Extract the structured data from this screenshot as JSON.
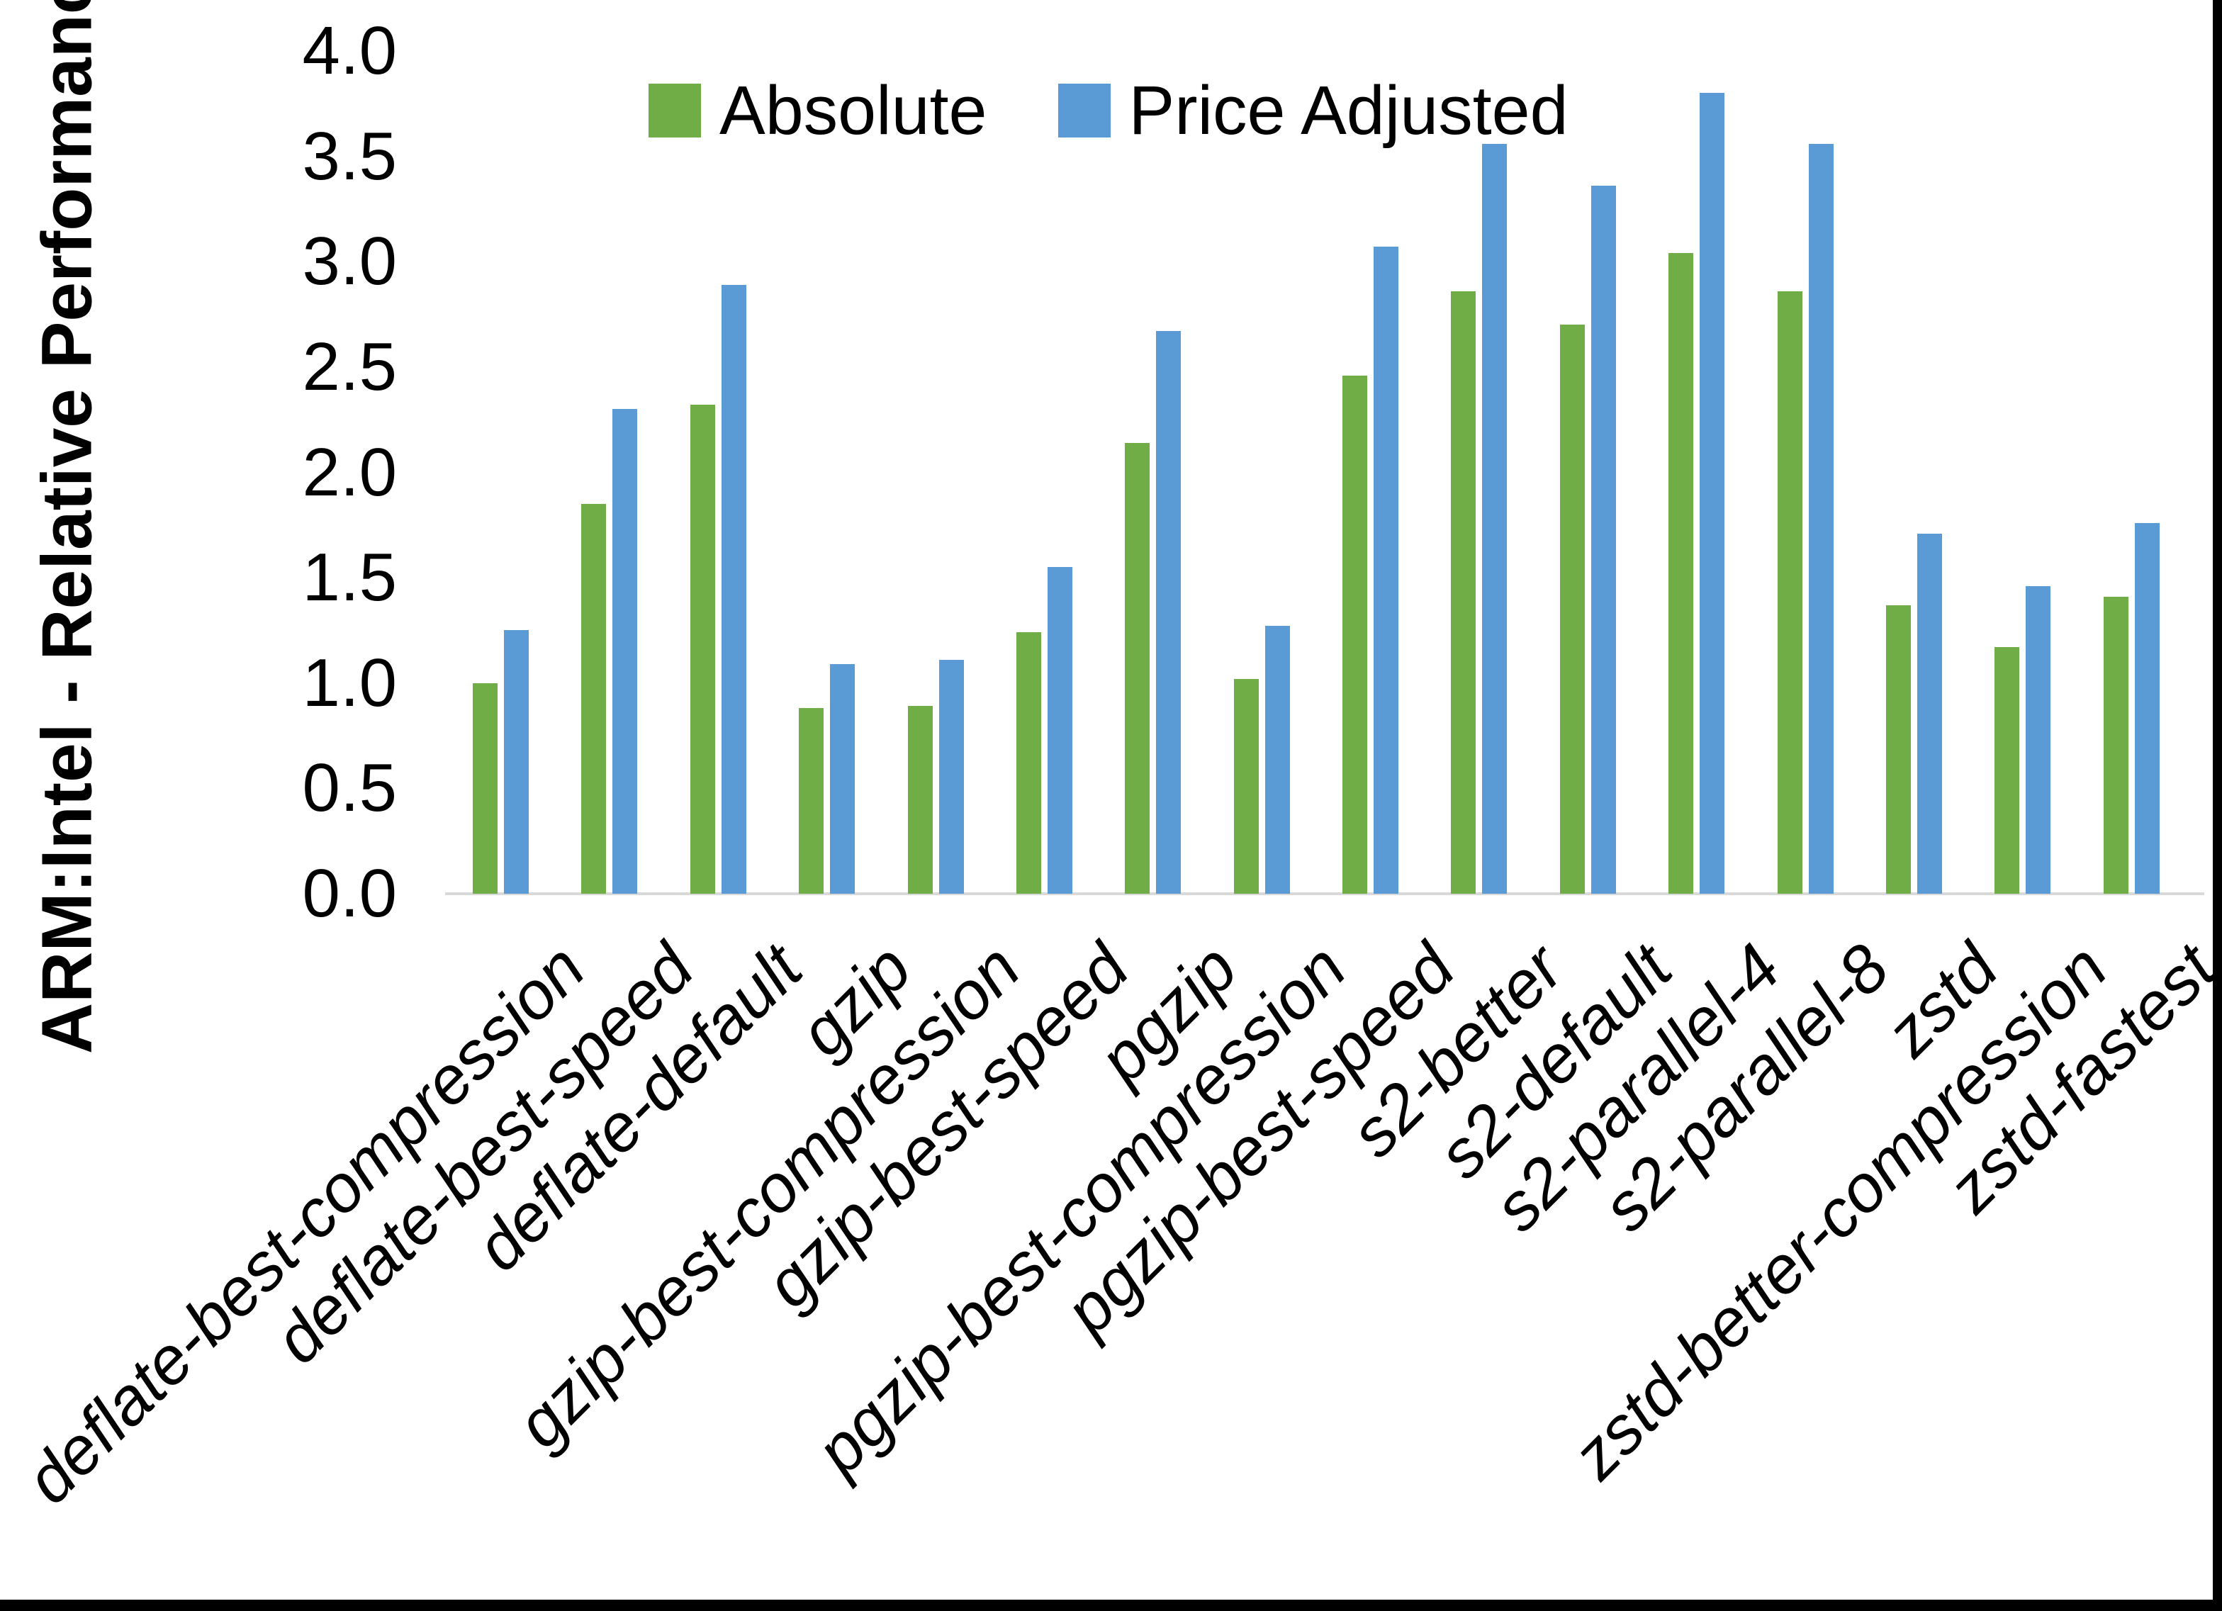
{
  "chart_data": {
    "type": "bar",
    "title": "",
    "xlabel": "",
    "ylabel": "ARM:Intel - Relative Performance",
    "ylim": [
      0,
      4.0
    ],
    "ytick_step": 0.5,
    "ytick_labels": [
      "0.0",
      "0.5",
      "1.0",
      "1.5",
      "2.0",
      "2.5",
      "3.0",
      "3.5",
      "4.0"
    ],
    "grid": false,
    "legend_position": "top-center",
    "categories": [
      "deflate-best-compression",
      "deflate-best-speed",
      "deflate-default",
      "gzip",
      "gzip-best-compression",
      "gzip-best-speed",
      "pgzip",
      "pgzip-best-compression",
      "pgzip-best-speed",
      "s2-better",
      "s2-default",
      "s2-parallel-4",
      "s2-parallel-8",
      "zstd",
      "zstd-better-compression",
      "zstd-fastest"
    ],
    "series": [
      {
        "name": "Absolute",
        "color": "#70AD47",
        "values": [
          1.0,
          1.85,
          2.32,
          0.88,
          0.89,
          1.24,
          2.14,
          1.02,
          2.46,
          2.86,
          2.7,
          3.04,
          2.86,
          1.37,
          1.17,
          1.41
        ]
      },
      {
        "name": "Price Adjusted",
        "color": "#5B9BD5",
        "values": [
          1.25,
          2.3,
          2.89,
          1.09,
          1.11,
          1.55,
          2.67,
          1.27,
          3.07,
          3.56,
          3.36,
          3.8,
          3.56,
          1.71,
          1.46,
          1.76
        ]
      }
    ]
  },
  "colors": {
    "background": "#FFFFFF",
    "axis_line": "#D9D9D9",
    "text": "#000000",
    "frame": "#000000"
  }
}
